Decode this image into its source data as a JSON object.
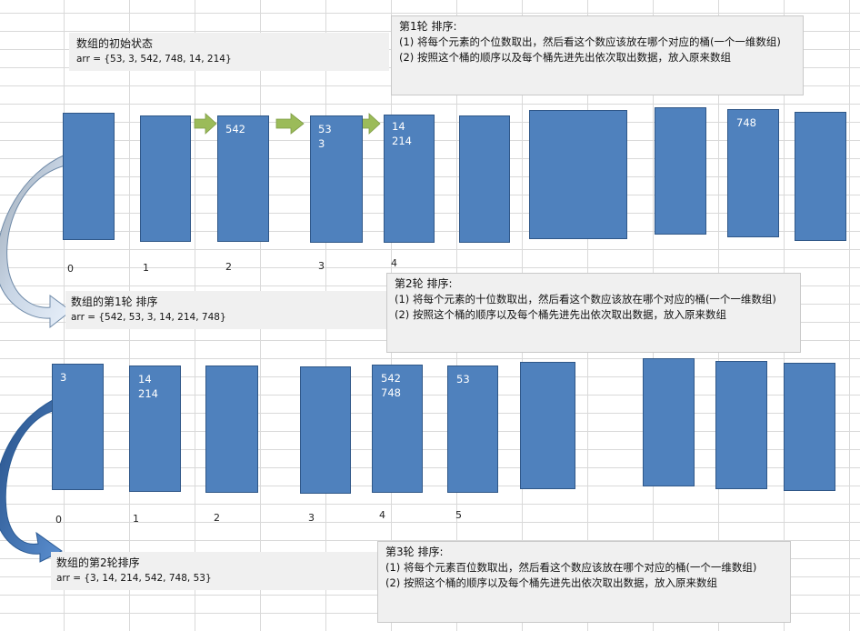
{
  "initial": {
    "title": "数组的初始状态",
    "arr": "arr = {53, 3, 542, 748, 14, 214}"
  },
  "after1": {
    "title": "数组的第1轮 排序",
    "arr": "arr = {542, 53, 3, 14, 214, 748}"
  },
  "after2": {
    "title": "数组的第2轮排序",
    "arr": "arr = {3, 14, 214, 542, 748, 53}"
  },
  "round1": {
    "title": "第1轮 排序:",
    "step1": "(1) 将每个元素的个位数取出，然后看这个数应该放在哪个对应的桶(一个一维数组)",
    "step2": "(2) 按照这个桶的顺序以及每个桶先进先出依次取出数据，放入原来数组"
  },
  "round2": {
    "title": "第2轮 排序:",
    "step1": "(1) 将每个元素的十位数取出，然后看这个数应该放在哪个对应的桶(一个一维数组)",
    "step2": "(2) 按照这个桶的顺序以及每个桶先进先出依次取出数据，放入原来数组"
  },
  "round3": {
    "title": "第3轮 排序:",
    "step1": "(1) 将每个元素百位数取出，然后看这个数应该放在哪个对应的桶(一个一维数组)",
    "step2": "(2) 按照这个桶的顺序以及每个桶先进先出依次取出数据，放入原来数组"
  },
  "row1": {
    "bucket_values": [
      "",
      "",
      "542",
      "53\n3",
      "14\n214",
      "",
      "",
      "",
      "748",
      ""
    ],
    "index_labels": [
      "0",
      "1",
      "2",
      "3",
      "4"
    ]
  },
  "row2": {
    "bucket_values": [
      "3",
      "14\n214",
      "",
      "",
      "542\n748",
      "53",
      "",
      "",
      "",
      ""
    ],
    "index_labels": [
      "0",
      "1",
      "2",
      "3",
      "4",
      "5"
    ]
  },
  "colors": {
    "bucket": "#4f81bd",
    "bucket_border": "#2f5788",
    "green_arrow": "#9bbb59",
    "curve_arrow": "#9fb8d8",
    "curve_arrow_dark": "#3a6aa8"
  }
}
